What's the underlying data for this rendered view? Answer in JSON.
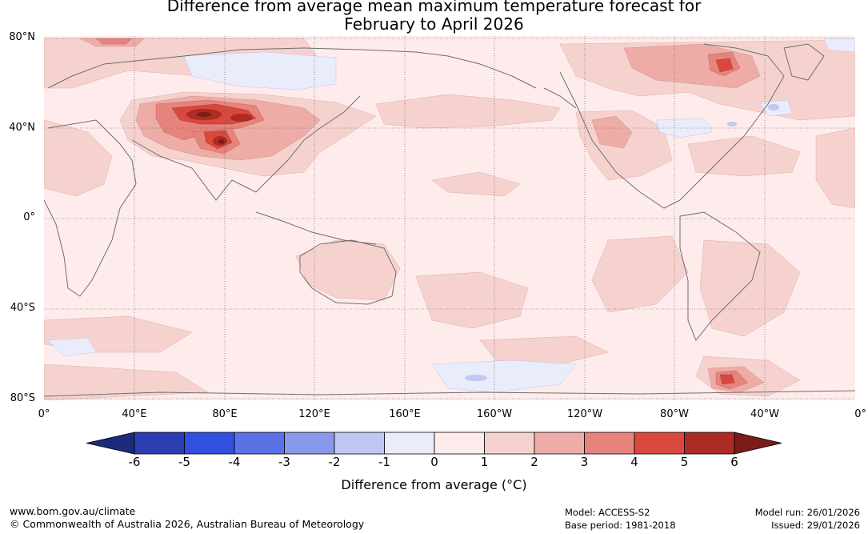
{
  "title": {
    "line1": "Difference from average mean maximum temperature forecast for",
    "line2": "February to April 2026"
  },
  "map": {
    "lat_labels": [
      "80°N",
      "40°N",
      "0°",
      "40°S",
      "80°S"
    ],
    "lon_labels": [
      "0°",
      "40°E",
      "80°E",
      "120°E",
      "160°E",
      "160°W",
      "120°W",
      "80°W",
      "40°W",
      "0°"
    ],
    "ocean_color": "#fdeceb",
    "land_outline_color": "#6e6e6e"
  },
  "colorbar": {
    "title": "Difference from average (°C)",
    "tick_labels": [
      "-6",
      "-5",
      "-4",
      "-3",
      "-2",
      "-1",
      "0",
      "1",
      "2",
      "3",
      "4",
      "5",
      "6"
    ],
    "colors": [
      "#1b2a7a",
      "#2a3eb1",
      "#3150e0",
      "#5a72e6",
      "#8899ea",
      "#bfc7f2",
      "#e9ecfa",
      "#fdeceb",
      "#f6d2cf",
      "#eeaca7",
      "#e6837c",
      "#d9483d",
      "#ac2b22",
      "#7a1c17"
    ]
  },
  "footer": {
    "website": "www.bom.gov.au/climate",
    "copyright": "© Commonwealth of Australia 2026, Australian Bureau of Meteorology",
    "model": "Model: ACCESS-S2",
    "base_period": "Base period: 1981-2018",
    "model_run": "Model run: 26/01/2026",
    "issued": "Issued: 29/01/2026"
  }
}
